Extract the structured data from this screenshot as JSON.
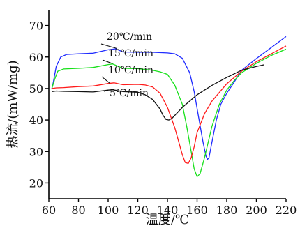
{
  "chart_data": {
    "type": "line",
    "xlabel": "温度/℃",
    "ylabel": "热流/(mW/mg)",
    "xlim": [
      60,
      220
    ],
    "ylim": [
      15,
      75
    ],
    "x_ticks": [
      60,
      80,
      100,
      120,
      140,
      160,
      180,
      200,
      220
    ],
    "y_ticks": [
      20,
      30,
      40,
      50,
      60,
      70
    ],
    "grid": false,
    "legend": "none",
    "series": [
      {
        "name": "20℃/min",
        "color": "#1f2bff",
        "x": [
          62,
          63,
          65,
          68,
          72,
          80,
          90,
          100,
          105,
          110,
          120,
          130,
          140,
          145,
          150,
          155,
          158,
          161,
          164,
          166,
          167,
          168,
          170,
          173,
          176,
          180,
          185,
          190,
          200,
          210,
          220
        ],
        "y": [
          50,
          52,
          57,
          60,
          60.8,
          61,
          61.2,
          62.3,
          62.6,
          61.6,
          61.5,
          61.5,
          61.3,
          61,
          59.6,
          55,
          49,
          41,
          33,
          28.5,
          27.5,
          28,
          33,
          40,
          45,
          48.5,
          52,
          55.8,
          59.5,
          63,
          66.5
        ]
      },
      {
        "name": "15℃/min",
        "color": "#17e01a",
        "x": [
          62,
          64,
          66,
          70,
          80,
          90,
          100,
          103,
          110,
          120,
          130,
          135,
          140,
          145,
          150,
          153,
          156,
          158,
          160,
          162,
          165,
          170,
          175,
          180,
          185,
          190,
          200,
          210,
          220
        ],
        "y": [
          50,
          53,
          55.5,
          56.2,
          56.4,
          56.7,
          57.6,
          57.8,
          56.4,
          56.3,
          55.8,
          55.3,
          54.5,
          51,
          45,
          38,
          30,
          24.5,
          22,
          23,
          28,
          38,
          45,
          49.5,
          52.5,
          55,
          58,
          60.5,
          62.5
        ]
      },
      {
        "name": "10℃/min",
        "color": "#ff1a1a",
        "x": [
          62,
          65,
          70,
          80,
          90,
          100,
          104,
          110,
          120,
          125,
          130,
          135,
          140,
          145,
          150,
          152,
          154,
          156,
          158,
          160,
          165,
          170,
          180,
          190,
          200,
          210,
          220
        ],
        "y": [
          50,
          50.2,
          50.3,
          50.6,
          50.8,
          51.6,
          51.8,
          51.2,
          51.3,
          51.1,
          50.5,
          48.5,
          44,
          37.5,
          29,
          26.5,
          26.2,
          28,
          31.5,
          36,
          42,
          46,
          51.5,
          55.5,
          58.5,
          61,
          63.5
        ]
      },
      {
        "name": "5℃/min",
        "color": "#111111",
        "x": [
          62,
          65,
          70,
          80,
          90,
          100,
          103,
          110,
          120,
          125,
          130,
          135,
          137,
          139,
          141,
          143,
          146,
          150,
          155,
          160,
          170,
          180,
          190,
          200,
          205
        ],
        "y": [
          49,
          49.2,
          49.1,
          49,
          48.9,
          49.5,
          49.6,
          49,
          48.8,
          48,
          46.5,
          43.5,
          41.5,
          40.2,
          40,
          40.5,
          42,
          44,
          46,
          48,
          51,
          53.5,
          55.8,
          57,
          57.5
        ]
      }
    ],
    "annotations": [
      {
        "text": "20℃/min",
        "series": "20℃/min"
      },
      {
        "text": "15℃/min",
        "series": "15℃/min"
      },
      {
        "text": "10℃/min",
        "series": "10℃/min"
      },
      {
        "text": "5℃/min",
        "series": "5℃/min"
      }
    ]
  }
}
